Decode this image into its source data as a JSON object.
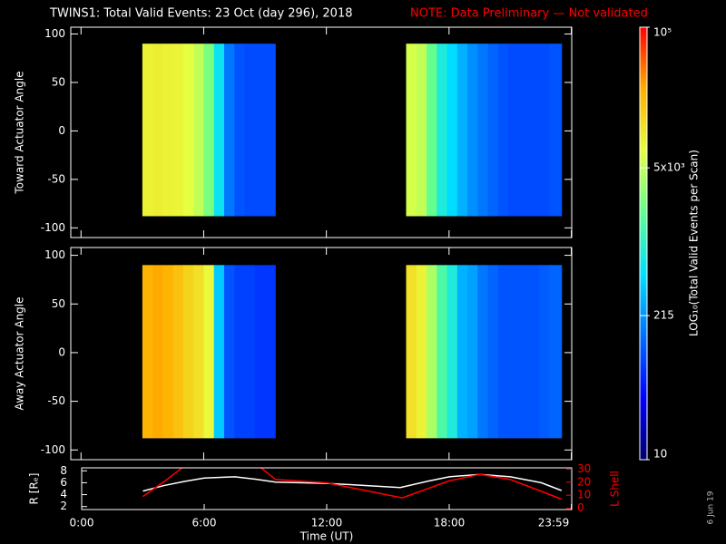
{
  "chart_data": [
    {
      "type": "heatmap",
      "title": "TWINS1: Total Valid Events: 23 Oct (day 296), 2018",
      "note": "NOTE: Data Preliminary — Not validated",
      "note_color": "#ff0000",
      "ylabel": "Toward Actuator Angle",
      "xlim": [
        -0.5,
        24
      ],
      "ylim": [
        -110,
        107
      ],
      "yticks": [
        -100,
        -50,
        0,
        50,
        100
      ],
      "colorscale": [
        "#00006a",
        "#0000ff",
        "#0070ff",
        "#00e0ff",
        "#60ff90",
        "#e8ff40",
        "#ffb000",
        "#ff0000"
      ],
      "colorbar": {
        "label": "LOG₁₀(Total Valid Events per Scan)",
        "log": true,
        "lim": [
          10,
          100000
        ],
        "ticks": [
          10,
          215,
          {
            "value": 5000,
            "label": "5x10³"
          },
          {
            "value": 100000,
            "label": "10⁵"
          }
        ]
      },
      "blocks": [
        {
          "yrange": [
            -88,
            90
          ],
          "bins": [
            3.0,
            3.5,
            4.0,
            4.5,
            5.0,
            5.5,
            6.0,
            6.5,
            7.0,
            7.5,
            8.0,
            8.5,
            9.0,
            9.5
          ],
          "values": [
            9000,
            9500,
            9000,
            8500,
            7000,
            5000,
            2500,
            600,
            150,
            100,
            90,
            90,
            90
          ]
        },
        {
          "yrange": [
            -88,
            90
          ],
          "bins": [
            15.9,
            16.4,
            16.9,
            17.4,
            17.9,
            18.4,
            18.9,
            19.4,
            19.9,
            20.4,
            20.9,
            21.4,
            21.9,
            22.4,
            22.9,
            23.5
          ],
          "values": [
            6000,
            5000,
            2000,
            800,
            500,
            300,
            200,
            150,
            120,
            100,
            90,
            90,
            90,
            90,
            100
          ]
        }
      ]
    },
    {
      "type": "heatmap",
      "ylabel": "Away Actuator Angle",
      "xlim": [
        -0.5,
        24
      ],
      "ylim": [
        -110,
        108
      ],
      "yticks": [
        -100,
        -50,
        0,
        50,
        100
      ],
      "colorscale": [
        "#00006a",
        "#0000ff",
        "#0070ff",
        "#00e0ff",
        "#60ff90",
        "#e8ff40",
        "#ffb000",
        "#ff0000"
      ],
      "blocks": [
        {
          "yrange": [
            -88,
            90
          ],
          "bins": [
            3.0,
            3.5,
            4.0,
            4.5,
            5.0,
            5.5,
            6.0,
            6.5,
            7.0,
            7.5,
            8.0,
            8.5,
            9.0,
            9.5
          ],
          "values": [
            25000,
            28000,
            25000,
            20000,
            15000,
            12000,
            8000,
            400,
            100,
            80,
            80,
            70,
            70
          ]
        },
        {
          "yrange": [
            -88,
            90
          ],
          "bins": [
            15.9,
            16.4,
            16.9,
            17.4,
            17.9,
            18.4,
            18.9,
            19.4,
            19.9,
            20.4,
            20.9,
            21.4,
            21.9,
            22.4,
            22.9,
            23.5
          ],
          "values": [
            12000,
            9000,
            4000,
            1500,
            800,
            300,
            250,
            150,
            120,
            100,
            100,
            100,
            100,
            110,
            120
          ]
        }
      ]
    },
    {
      "type": "line",
      "xlabel": "Time (UT)",
      "ylabel": "R [Rₑ]",
      "y2label": "L Shell",
      "y2color": "#ff0000",
      "annotation": "6 Jun 19",
      "xlim": [
        0,
        24
      ],
      "xticks": [
        {
          "value": 0,
          "label": "0:00"
        },
        {
          "value": 6,
          "label": "6:00"
        },
        {
          "value": 12,
          "label": "12:00"
        },
        {
          "value": 18,
          "label": "18:00"
        },
        {
          "value": 23.98,
          "label": "23:59"
        }
      ],
      "ylim": [
        1.5,
        8.5
      ],
      "yticks": [
        2,
        4,
        6,
        8
      ],
      "y2lim": [
        -1,
        31
      ],
      "y2ticks": [
        0,
        10,
        20,
        30
      ],
      "series": [
        {
          "color": "#ffffff",
          "x": [
            3,
            4,
            5,
            6,
            7.5,
            8.5,
            9.5,
            12,
            15.6,
            17,
            18,
            19.5,
            21,
            22.5,
            23.5
          ],
          "values": [
            4.6,
            5.5,
            6.2,
            6.8,
            7.0,
            6.6,
            6.1,
            5.9,
            5.2,
            6.3,
            7.0,
            7.4,
            7.0,
            6.0,
            4.7
          ]
        },
        {
          "color": "#ff0000",
          "axis": "y2",
          "x": [
            3,
            4,
            5,
            6.5,
            8.7,
            9.5,
            12,
            15.7,
            18,
            19.5,
            21,
            23.5
          ],
          "values": [
            9,
            20,
            32,
            null,
            32,
            22,
            19.5,
            8,
            21,
            26,
            22,
            7
          ]
        }
      ]
    }
  ]
}
